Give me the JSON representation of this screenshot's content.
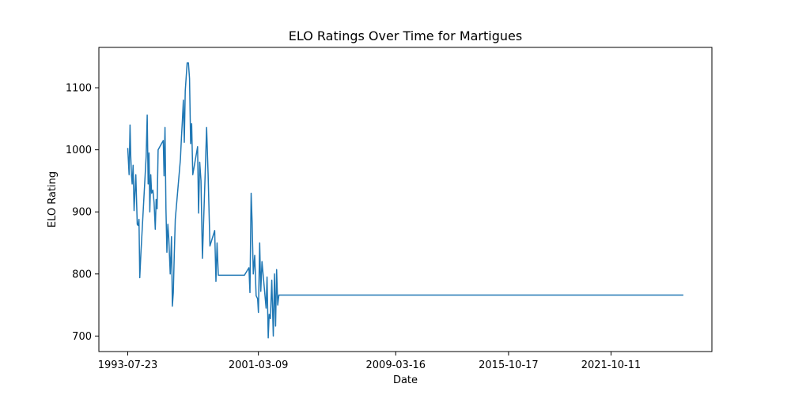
{
  "chart_data": {
    "type": "line",
    "title": "ELO Ratings Over Time for Martigues",
    "xlabel": "Date",
    "ylabel": "ELO Rating",
    "xlim": [
      "1991-11-15",
      "2027-09-01"
    ],
    "ylim": [
      675,
      1165
    ],
    "x_ticks": [
      "1993-07-23",
      "2001-03-09",
      "2009-03-16",
      "2015-10-17",
      "2021-10-11"
    ],
    "y_ticks": [
      700,
      800,
      900,
      1000,
      1100
    ],
    "grid": false,
    "line_color": "#1f77b4",
    "series": [
      {
        "x": [
          "1993-07-23",
          "1993-08-20",
          "1993-09-10",
          "1993-09-25",
          "1993-10-10",
          "1993-10-25",
          "1993-11-15",
          "1993-12-05",
          "1994-01-10",
          "1994-02-10",
          "1994-03-01",
          "1994-03-20",
          "1994-04-05",
          "1994-05-01",
          "1994-08-20",
          "1994-09-10",
          "1994-10-01",
          "1994-10-20",
          "1994-11-05",
          "1994-11-25",
          "1994-12-15",
          "1995-01-10",
          "1995-02-05",
          "1995-03-01",
          "1995-03-20",
          "1995-04-10",
          "1995-05-01",
          "1995-08-20",
          "1995-09-05",
          "1995-09-25",
          "1995-10-15",
          "1995-11-05",
          "1995-11-25",
          "1995-12-15",
          "1996-01-15",
          "1996-02-10",
          "1996-03-01",
          "1996-03-20",
          "1996-04-10",
          "1996-05-01",
          "1996-08-20",
          "1996-09-10",
          "1996-10-01",
          "1996-10-20",
          "1996-11-10",
          "1996-12-01",
          "1997-01-10",
          "1997-02-05",
          "1997-03-01",
          "1997-03-25",
          "1997-04-15",
          "1997-05-10",
          "1997-08-20",
          "1997-09-10",
          "1997-10-05",
          "1997-11-01",
          "1997-12-01",
          "1998-02-01",
          "1998-03-01",
          "1998-04-01",
          "1998-05-10",
          "1998-08-20",
          "1998-09-15",
          "1998-10-10",
          "1998-11-05",
          "1998-12-05",
          "1999-01-20",
          "1999-02-20",
          "1999-03-15",
          "1999-04-10",
          "1999-05-10",
          "1999-05-25",
          "1999-08-20",
          "1999-09-10",
          "1999-10-01",
          "1999-10-20",
          "1999-11-15",
          "1999-12-15",
          "2000-01-20",
          "2000-02-20",
          "2000-03-20",
          "2000-04-15",
          "2000-05-15",
          "2000-08-20",
          "2000-09-10",
          "2000-10-05",
          "2000-10-25",
          "2000-11-20",
          "2000-12-20",
          "2001-01-20",
          "2001-02-20",
          "2001-03-09",
          "2001-04-05",
          "2001-04-30",
          "2001-05-25",
          "2001-08-20",
          "2001-09-10",
          "2001-10-05",
          "2001-10-25",
          "2001-11-20",
          "2001-12-20",
          "2002-01-20",
          "2002-02-15",
          "2002-03-10",
          "2002-04-01",
          "2002-04-25",
          "2002-05-20",
          "2002-06-01",
          "2025-12-31"
        ],
        "y": [
          1003,
          960,
          1040,
          990,
          960,
          945,
          975,
          902,
          960,
          880,
          878,
          888,
          794,
          835,
          990,
          1056,
          945,
          995,
          900,
          960,
          930,
          935,
          915,
          872,
          920,
          905,
          1000,
          1015,
          958,
          1036,
          905,
          835,
          880,
          857,
          800,
          860,
          748,
          770,
          830,
          888,
          985,
          1020,
          1048,
          1080,
          1012,
          1095,
          1140,
          1140,
          1115,
          1010,
          1042,
          960,
          1005,
          898,
          980,
          950,
          825,
          970,
          1036,
          960,
          845,
          870,
          788,
          850,
          798,
          798,
          798,
          798,
          798,
          798,
          798,
          798,
          798,
          798,
          798,
          798,
          798,
          798,
          798,
          798,
          798,
          798,
          798,
          810,
          770,
          930,
          885,
          800,
          830,
          765,
          760,
          738,
          850,
          772,
          820,
          745,
          795,
          697,
          735,
          728,
          790,
          700,
          800,
          716,
          807,
          750,
          766,
          766,
          766
        ]
      }
    ]
  }
}
